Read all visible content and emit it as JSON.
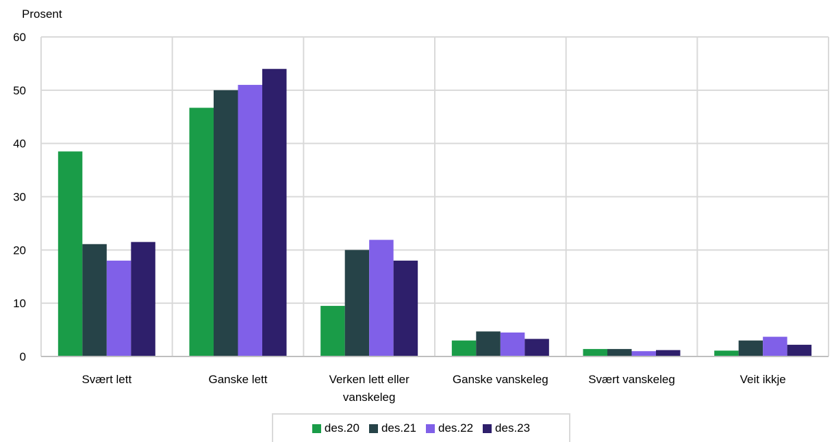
{
  "chart_data": {
    "type": "bar",
    "ylabel": "Prosent",
    "ylim": [
      0,
      60
    ],
    "yticks": [
      0,
      10,
      20,
      30,
      40,
      50,
      60
    ],
    "grid": true,
    "legend_position": "bottom",
    "categories": [
      [
        "Svært lett"
      ],
      [
        "Ganske lett"
      ],
      [
        "Verken lett eller",
        "vanskeleg"
      ],
      [
        "Ganske vanskeleg"
      ],
      [
        "Svært vanskeleg"
      ],
      [
        "Veit ikkje"
      ]
    ],
    "series": [
      {
        "name": "des.20",
        "color": "#1a9c48",
        "values": [
          38.5,
          46.7,
          9.5,
          3.0,
          1.4,
          1.1
        ]
      },
      {
        "name": "des.21",
        "color": "#264348",
        "values": [
          21.1,
          50.0,
          20.0,
          4.7,
          1.4,
          3.0
        ]
      },
      {
        "name": "des.22",
        "color": "#8060e8",
        "values": [
          18.0,
          51.0,
          21.9,
          4.5,
          1.0,
          3.7
        ]
      },
      {
        "name": "des.23",
        "color": "#2e1f6b",
        "values": [
          21.5,
          54.0,
          18.0,
          3.3,
          1.2,
          2.2
        ]
      }
    ]
  }
}
